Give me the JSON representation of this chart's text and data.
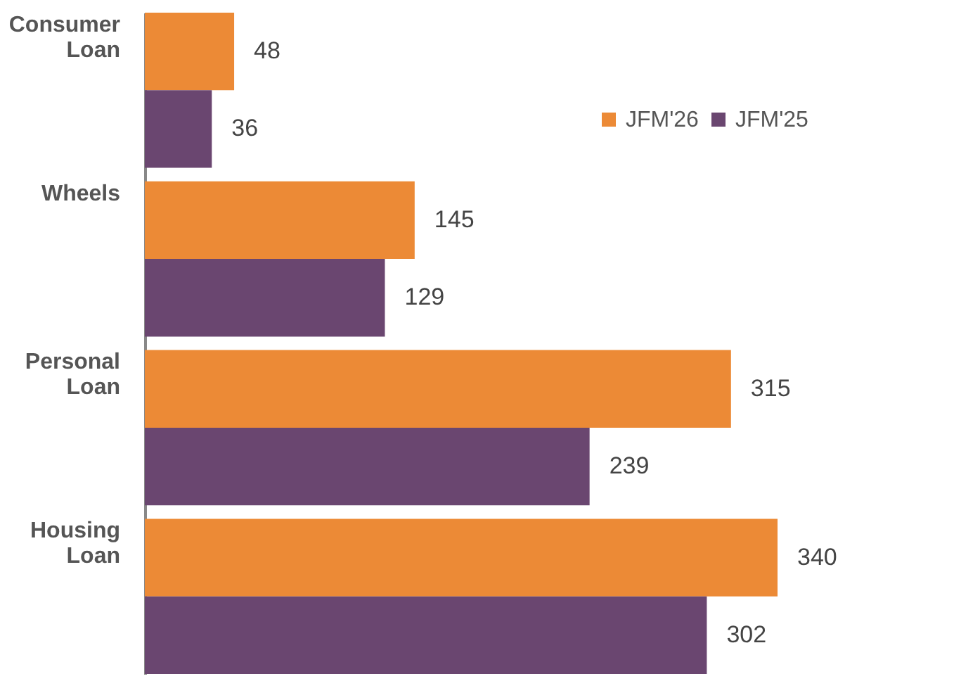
{
  "chart_data": {
    "type": "bar",
    "orientation": "horizontal",
    "categories": [
      "Consumer Loan",
      "Wheels",
      "Personal Loan",
      "Housing Loan"
    ],
    "series": [
      {
        "name": "JFM'26",
        "color": "#ec8a36",
        "values": [
          48,
          145,
          315,
          340
        ]
      },
      {
        "name": "JFM'25",
        "color": "#6a4670",
        "values": [
          36,
          129,
          239,
          302
        ]
      }
    ],
    "data_labels": true,
    "legend": "top right",
    "grid": false
  }
}
